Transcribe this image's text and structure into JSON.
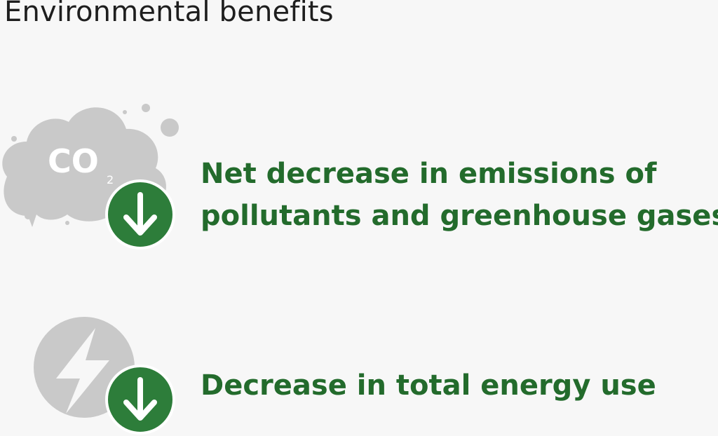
{
  "title": "Environmental benefits",
  "colors": {
    "accent_green": "#2d7d3a",
    "text_green": "#236b2c",
    "icon_gray": "#c9c9c9",
    "badge_border": "#ffffff"
  },
  "benefits": [
    {
      "icon": "co2-cloud-icon",
      "badge_icon": "down-arrow-icon",
      "co2_label": "CO",
      "co2_subscript": "2",
      "line1": "Net decrease in emissions of",
      "line2": "pollutants and greenhouse gases"
    },
    {
      "icon": "lightning-bolt-icon",
      "badge_icon": "down-arrow-icon",
      "line1": "Decrease in total energy use"
    }
  ]
}
